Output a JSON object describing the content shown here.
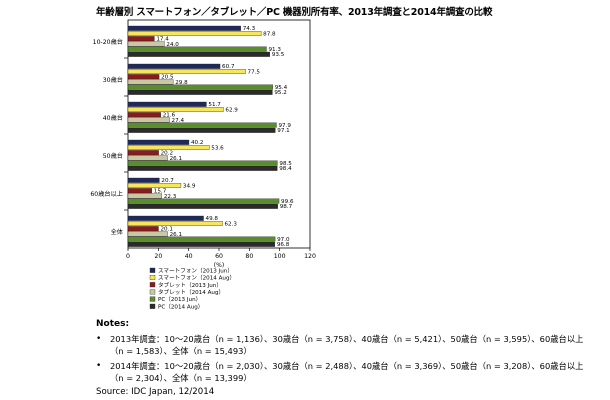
{
  "chart_data": {
    "type": "bar",
    "orientation": "horizontal",
    "title": "年齢層別 スマートフォン／タブレット／PC 機器別所有率、2013年調査と2014年調査の比較",
    "xlabel": "(%)",
    "xlim": [
      0,
      120
    ],
    "xticks": [
      "0",
      "20",
      "40",
      "60",
      "80",
      "100",
      "120"
    ],
    "grid": false,
    "legend_position": "bottom-left",
    "categories": [
      "10-20歳台",
      "30歳台",
      "40歳台",
      "50歳台",
      "60歳台以上",
      "全体"
    ],
    "series": [
      {
        "name": "スマートフォン（2013 Jun）",
        "color": "#1f2a5a",
        "values": [
          74.3,
          60.7,
          51.7,
          40.2,
          20.7,
          49.8
        ],
        "labels": [
          "74.3",
          "60.7",
          "51.7",
          "40.2",
          "20.7",
          "49.8"
        ]
      },
      {
        "name": "スマートフォン（2014 Aug）",
        "color": "#f7e55a",
        "values": [
          87.8,
          77.5,
          62.9,
          53.6,
          34.9,
          62.3
        ],
        "labels": [
          "87.8",
          "77.5",
          "62.9",
          "53.6",
          "34.9",
          "62.3"
        ]
      },
      {
        "name": "タブレット（2013 Jun）",
        "color": "#8c1c1c",
        "values": [
          17.4,
          20.5,
          21.6,
          20.2,
          15.7,
          20.1
        ],
        "labels": [
          "17.4",
          "20.5",
          "21.6",
          "20.2",
          "15.7",
          "20.1"
        ]
      },
      {
        "name": "タブレット（2014 Aug）",
        "color": "#c9c8a4",
        "values": [
          24.0,
          29.8,
          27.4,
          26.1,
          22.3,
          26.1
        ],
        "labels": [
          "24.0",
          "29.8",
          "27.4",
          "26.1",
          "22.3",
          "26.1"
        ]
      },
      {
        "name": "PC（2013 Jun）",
        "color": "#5a8e2c",
        "values": [
          91.3,
          95.4,
          97.9,
          98.5,
          99.6,
          97.0
        ],
        "labels": [
          "91.3",
          "95.4",
          "97.9",
          "98.5",
          "99.6",
          "97.0"
        ]
      },
      {
        "name": "PC（2014 Aug）",
        "color": "#2b2b2b",
        "values": [
          93.5,
          95.2,
          97.1,
          98.4,
          98.7,
          96.8
        ],
        "labels": [
          "93.5",
          "95.2",
          "97.1",
          "98.4",
          "98.7",
          "96.8"
        ]
      }
    ]
  },
  "notes": {
    "heading": "Notes:",
    "items": [
      "2013年調査：10～20歳台（n = 1,136）、30歳台（n = 3,758）、40歳台（n = 5,421）、50歳台（n = 3,595）、60歳台以上（n = 1,583）、全体（n = 15,493）",
      "2014年調査：10～20歳台（n = 2,030）、30歳台（n = 2,488）、40歳台（n = 3,369）、50歳台（n = 3,208）、60歳台以上（n = 2,304）、全体（n = 13,399）"
    ],
    "source": "Source: IDC Japan, 12/2014"
  }
}
